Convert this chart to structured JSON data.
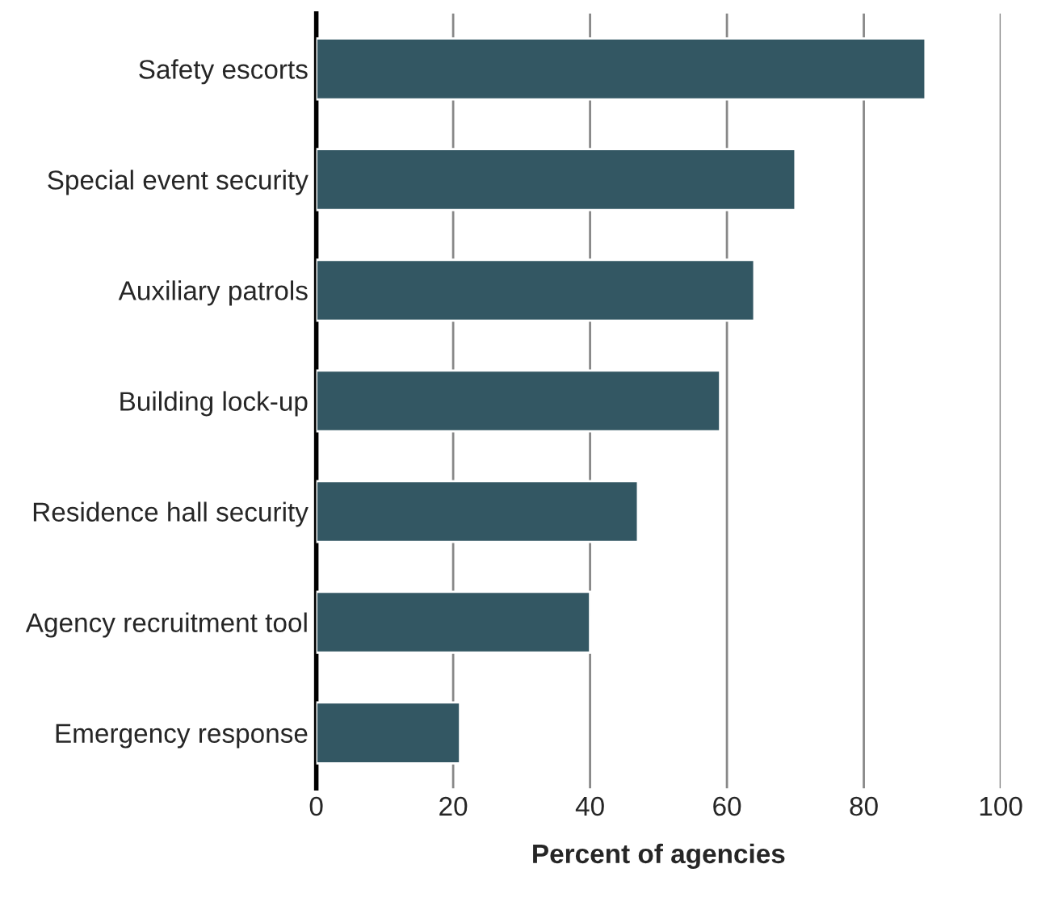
{
  "chart_data": {
    "type": "bar",
    "orientation": "horizontal",
    "xlabel": "Percent of agencies",
    "categories": [
      "Safety escorts",
      "Special event security",
      "Auxiliary patrols",
      "Building lock-up",
      "Residence hall security",
      "Agency recruitment tool",
      "Emergency response"
    ],
    "values": [
      89,
      70,
      64,
      59,
      47,
      40,
      21
    ],
    "color": "#335763",
    "xlim": [
      0,
      100
    ],
    "xticks": [
      0,
      20,
      40,
      60,
      80,
      100
    ],
    "grid": "x",
    "legend": false
  }
}
